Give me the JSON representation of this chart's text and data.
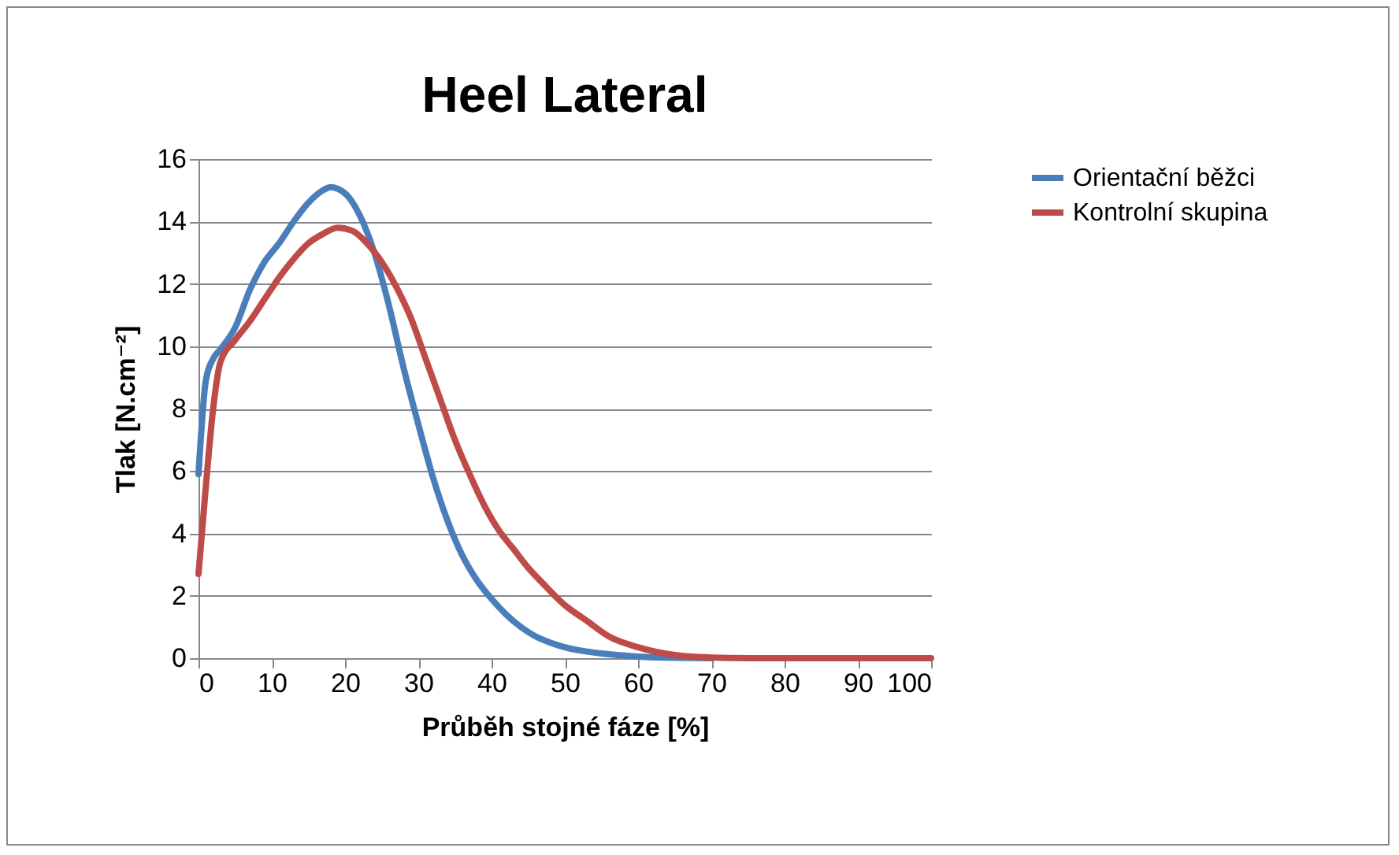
{
  "chart_data": {
    "type": "line",
    "title": "Heel Lateral",
    "xlabel": "Průběh stojné fáze [%]",
    "ylabel": "Tlak [N.cm⁻²]",
    "xlim": [
      0,
      100
    ],
    "xticks": [
      0,
      10,
      20,
      30,
      40,
      50,
      60,
      70,
      80,
      90,
      100
    ],
    "ylim": [
      0,
      16
    ],
    "yticks": [
      0,
      2,
      4,
      6,
      8,
      10,
      12,
      14,
      16
    ],
    "grid": "y",
    "legend": "right",
    "marker": "none",
    "line_style": "solid",
    "series": [
      {
        "name": "Orientační běžci",
        "color": "#4a7ebb",
        "x": [
          0,
          1,
          2,
          3,
          5,
          7,
          9,
          11,
          13,
          15,
          17,
          18,
          20,
          22,
          24,
          26,
          28,
          30,
          32,
          34,
          36,
          38,
          40,
          42,
          44,
          46,
          48,
          50,
          55,
          60,
          65,
          70
        ],
        "values": [
          5.9,
          8.9,
          9.6,
          9.9,
          10.6,
          11.8,
          12.7,
          13.3,
          14.0,
          14.6,
          15.0,
          15.1,
          14.9,
          14.2,
          13.0,
          11.3,
          9.3,
          7.5,
          5.8,
          4.4,
          3.3,
          2.5,
          1.9,
          1.4,
          1.0,
          0.7,
          0.5,
          0.35,
          0.15,
          0.05,
          0.01,
          0
        ]
      },
      {
        "name": "Kontrolní skupina",
        "color": "#be4b48",
        "x": [
          0,
          1,
          2,
          3,
          5,
          7,
          9,
          11,
          13,
          15,
          17,
          19,
          21,
          23,
          25,
          27,
          29,
          31,
          33,
          35,
          37,
          39,
          41,
          43,
          45,
          47,
          50,
          53,
          56,
          60,
          65,
          70,
          75,
          80,
          90,
          100
        ],
        "values": [
          2.7,
          5.5,
          8.0,
          9.5,
          10.2,
          10.8,
          11.5,
          12.2,
          12.8,
          13.3,
          13.6,
          13.8,
          13.7,
          13.3,
          12.7,
          11.9,
          10.9,
          9.6,
          8.3,
          7.0,
          5.9,
          4.9,
          4.1,
          3.5,
          2.9,
          2.4,
          1.7,
          1.2,
          0.7,
          0.35,
          0.1,
          0.02,
          0,
          0,
          0,
          0
        ]
      }
    ]
  }
}
